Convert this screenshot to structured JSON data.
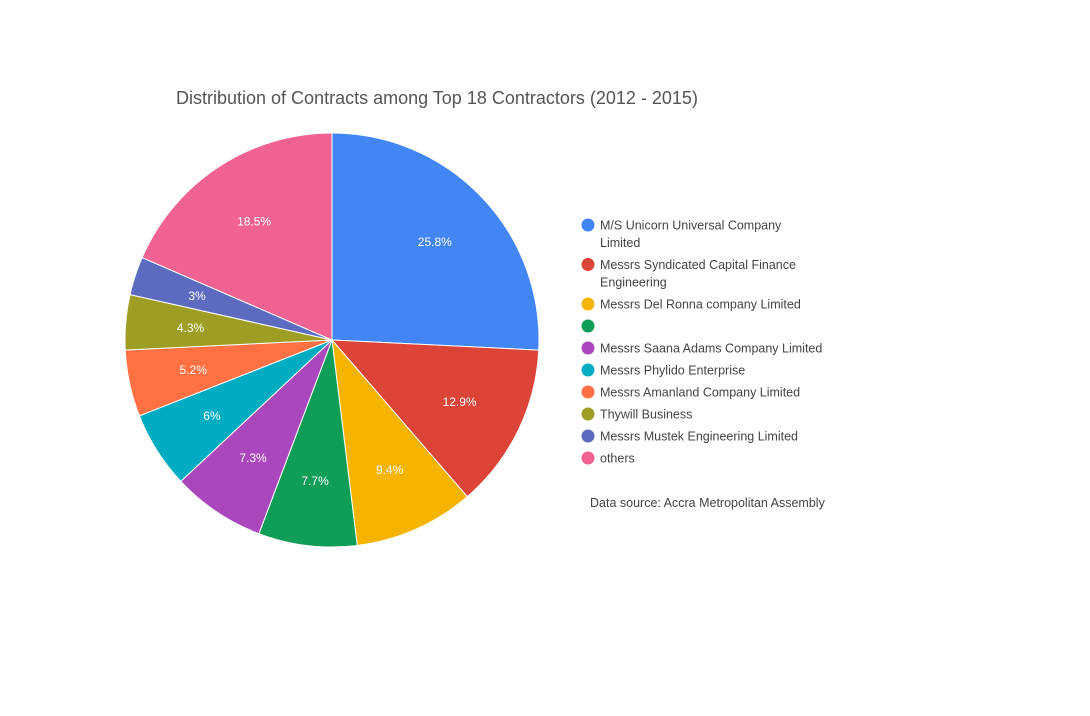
{
  "chart_data": {
    "type": "pie",
    "title": "Distribution of Contracts among Top 18 Contractors (2012 - 2015)",
    "start_angle_deg": 0,
    "direction": "clockwise",
    "legend_position": "right",
    "slices": [
      {
        "label": "M/S Unicorn Universal Company Limited",
        "legend_lines": [
          "M/S Unicorn Universal Company",
          "Limited"
        ],
        "value": 25.8,
        "value_label": "25.8%",
        "color": "#4285F4"
      },
      {
        "label": "Messrs Syndicated Capital Finance Engineering",
        "legend_lines": [
          "Messrs Syndicated Capital Finance",
          "Engineering"
        ],
        "value": 12.9,
        "value_label": "12.9%",
        "color": "#DB4437"
      },
      {
        "label": "Messrs Del Ronna company Limited",
        "legend_lines": [
          "Messrs Del Ronna company Limited"
        ],
        "value": 9.4,
        "value_label": "9.4%",
        "color": "#F4B400"
      },
      {
        "label": "",
        "legend_lines": [
          ""
        ],
        "value": 7.7,
        "value_label": "7.7%",
        "color": "#0F9D58"
      },
      {
        "label": "Messrs Saana Adams Company Limited",
        "legend_lines": [
          "Messrs Saana Adams Company Limited"
        ],
        "value": 7.3,
        "value_label": "7.3%",
        "color": "#AB47BC"
      },
      {
        "label": "Messrs Phylido Enterprise",
        "legend_lines": [
          "Messrs Phylido Enterprise"
        ],
        "value": 6.0,
        "value_label": "6%",
        "color": "#00ACC1"
      },
      {
        "label": "Messrs Amanland Company Limited",
        "legend_lines": [
          "Messrs Amanland Company Limited"
        ],
        "value": 5.2,
        "value_label": "5.2%",
        "color": "#FF7043"
      },
      {
        "label": "Thywill Business",
        "legend_lines": [
          "Thywill Business"
        ],
        "value": 4.3,
        "value_label": "4.3%",
        "color": "#9E9D24"
      },
      {
        "label": "Messrs Mustek Engineering Limited",
        "legend_lines": [
          "Messrs Mustek Engineering Limited"
        ],
        "value": 3.0,
        "value_label": "3%",
        "color": "#5C6BC0"
      },
      {
        "label": "others",
        "legend_lines": [
          "others"
        ],
        "value": 18.5,
        "value_label": "18.5%",
        "color": "#F06292"
      }
    ],
    "source_note": "Data source: Accra Metropolitan Assembly"
  }
}
